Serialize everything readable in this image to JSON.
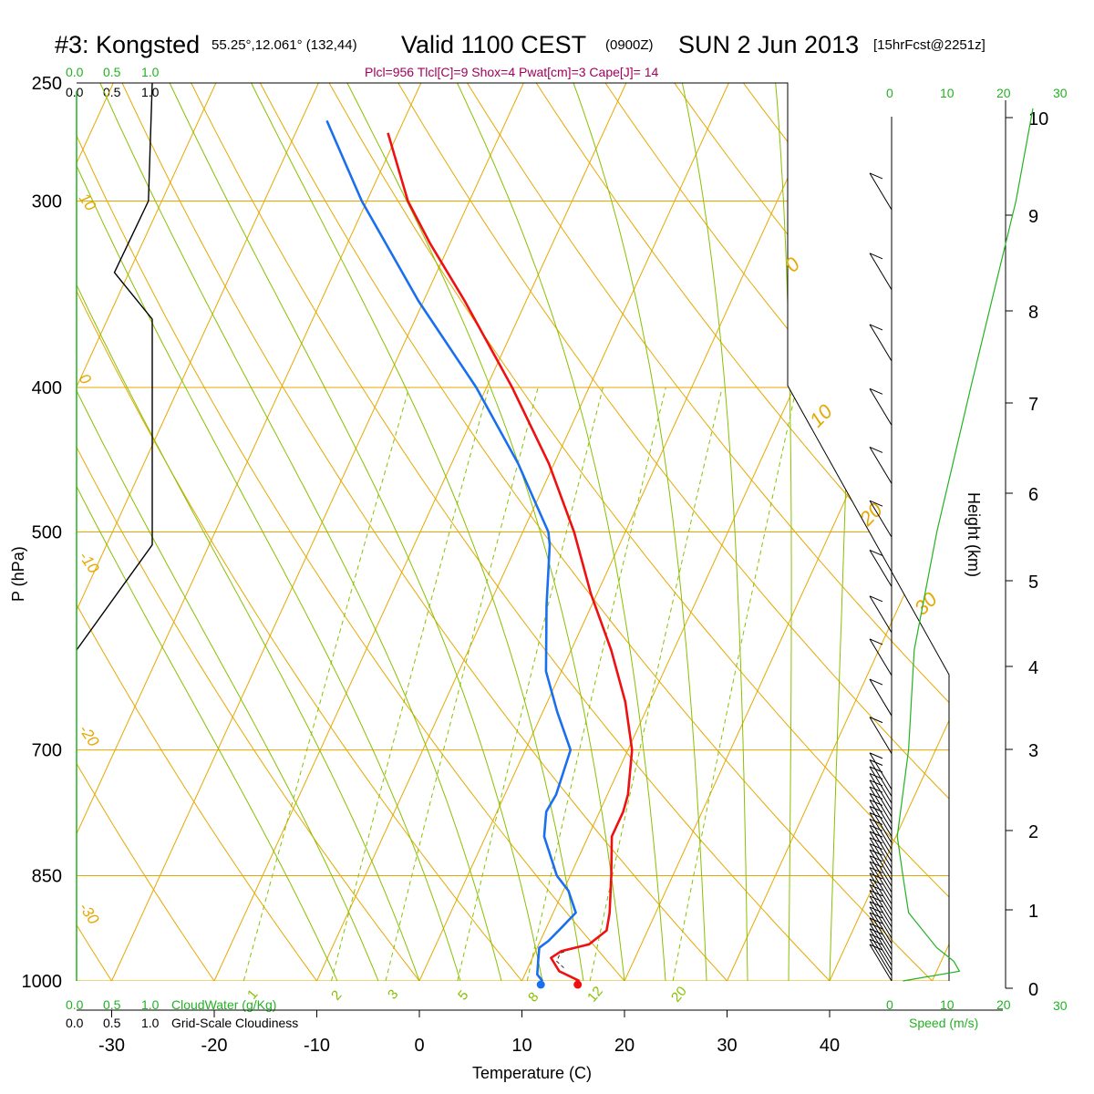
{
  "header": {
    "station": "#3: Kongsted",
    "coords": "55.25°,12.061° (132,44)",
    "valid": "Valid 1100 CEST",
    "zulu": "(0900Z)",
    "date": "SUN 2 Jun 2013",
    "fcst": "[15hrFcst@2251z]"
  },
  "indices": "Plcl=956 Tlcl[C]=9 Shox=4 Pwat[cm]=3 Cape[J]= 14",
  "legends": {
    "cloudwater_ticks": [
      "0.0",
      "0.5",
      "1.0"
    ],
    "cloudwater_label": "CloudWater (g/Kg)",
    "cloudiness_ticks": [
      "0.0",
      "0.5",
      "1.0"
    ],
    "cloudiness_label": "Grid-Scale Cloudiness",
    "speed_ticks": [
      "0",
      "10",
      "20",
      "30"
    ],
    "speed_label": "Speed (m/s)"
  },
  "colors": {
    "temperature": "#ee1111",
    "dewpoint": "#1a6fee",
    "isotherm": "#e6a800",
    "dry_adiabat": "#e6a800",
    "moist_adiabat": "#88c000",
    "mixing_ratio": "#88c000",
    "green_axis": "#22b222"
  },
  "chart_data": {
    "type": "line",
    "title": "Valid 1100 CEST (0900Z) SUN 2 Jun 2013",
    "xlabel": "Temperature (C)",
    "ylabel": "P (hPa)",
    "y2label": "Height (km)",
    "pressure_ticks": [
      250,
      300,
      400,
      500,
      700,
      850,
      1000
    ],
    "temperature_ticks": [
      -30,
      -20,
      -10,
      0,
      10,
      20,
      30,
      40
    ],
    "height_ticks": [
      0,
      1,
      2,
      3,
      4,
      5,
      6,
      7,
      8,
      9,
      10
    ],
    "isotherm_labels": [
      "10",
      "0",
      "-10",
      "-20",
      "-30"
    ],
    "dry_adiabat_labels": [
      "0",
      "10",
      "20",
      "30"
    ],
    "mixing_ratio_labels": [
      "1",
      "2",
      "3",
      "5",
      "8",
      "12",
      "20"
    ],
    "series": [
      {
        "name": "Temperature",
        "points": [
          [
            1000,
            15.6
          ],
          [
            985,
            13.2
          ],
          [
            965,
            11.8
          ],
          [
            955,
            12.5
          ],
          [
            945,
            14.9
          ],
          [
            925,
            16.0
          ],
          [
            900,
            15.5
          ],
          [
            850,
            14.0
          ],
          [
            800,
            12.3
          ],
          [
            770,
            12.3
          ],
          [
            750,
            12.0
          ],
          [
            700,
            10.4
          ],
          [
            650,
            7.6
          ],
          [
            600,
            3.9
          ],
          [
            550,
            -0.6
          ],
          [
            500,
            -5.0
          ],
          [
            450,
            -10.5
          ],
          [
            400,
            -17.5
          ],
          [
            350,
            -26.0
          ],
          [
            320,
            -32.0
          ],
          [
            300,
            -36.0
          ],
          [
            270,
            -41.0
          ]
        ]
      },
      {
        "name": "Dewpoint",
        "points": [
          [
            1000,
            12.0
          ],
          [
            990,
            11.2
          ],
          [
            970,
            10.7
          ],
          [
            950,
            10.2
          ],
          [
            940,
            10.8
          ],
          [
            920,
            11.5
          ],
          [
            900,
            12.2
          ],
          [
            870,
            10.5
          ],
          [
            850,
            8.7
          ],
          [
            800,
            5.7
          ],
          [
            770,
            4.8
          ],
          [
            750,
            5.0
          ],
          [
            700,
            4.4
          ],
          [
            660,
            1.4
          ],
          [
            620,
            -1.5
          ],
          [
            560,
            -4.4
          ],
          [
            510,
            -6.8
          ],
          [
            500,
            -7.5
          ],
          [
            450,
            -13.5
          ],
          [
            400,
            -21.0
          ],
          [
            350,
            -30.5
          ],
          [
            300,
            -40.5
          ],
          [
            265,
            -47.5
          ]
        ]
      }
    ],
    "parcel": {
      "name": "Parcel",
      "points": [
        [
          980,
          13.5
        ],
        [
          970,
          12.5
        ],
        [
          958,
          12.5
        ],
        [
          955,
          13.0
        ]
      ]
    },
    "surface_temperature": 15.6,
    "surface_dewpoint": 12.0,
    "cloudiness": [
      [
        250,
        1.0
      ],
      [
        300,
        0.95
      ],
      [
        335,
        0.5
      ],
      [
        360,
        1.0
      ],
      [
        400,
        1.0
      ],
      [
        500,
        1.0
      ],
      [
        510,
        1.0
      ],
      [
        600,
        0.0
      ]
    ],
    "wind_speed": [
      [
        1000,
        2
      ],
      [
        985,
        12
      ],
      [
        970,
        11
      ],
      [
        950,
        8
      ],
      [
        900,
        3
      ],
      [
        850,
        2
      ],
      [
        800,
        1
      ],
      [
        700,
        3
      ],
      [
        600,
        4
      ],
      [
        500,
        8
      ],
      [
        400,
        14
      ],
      [
        300,
        22
      ],
      [
        260,
        25
      ]
    ]
  }
}
